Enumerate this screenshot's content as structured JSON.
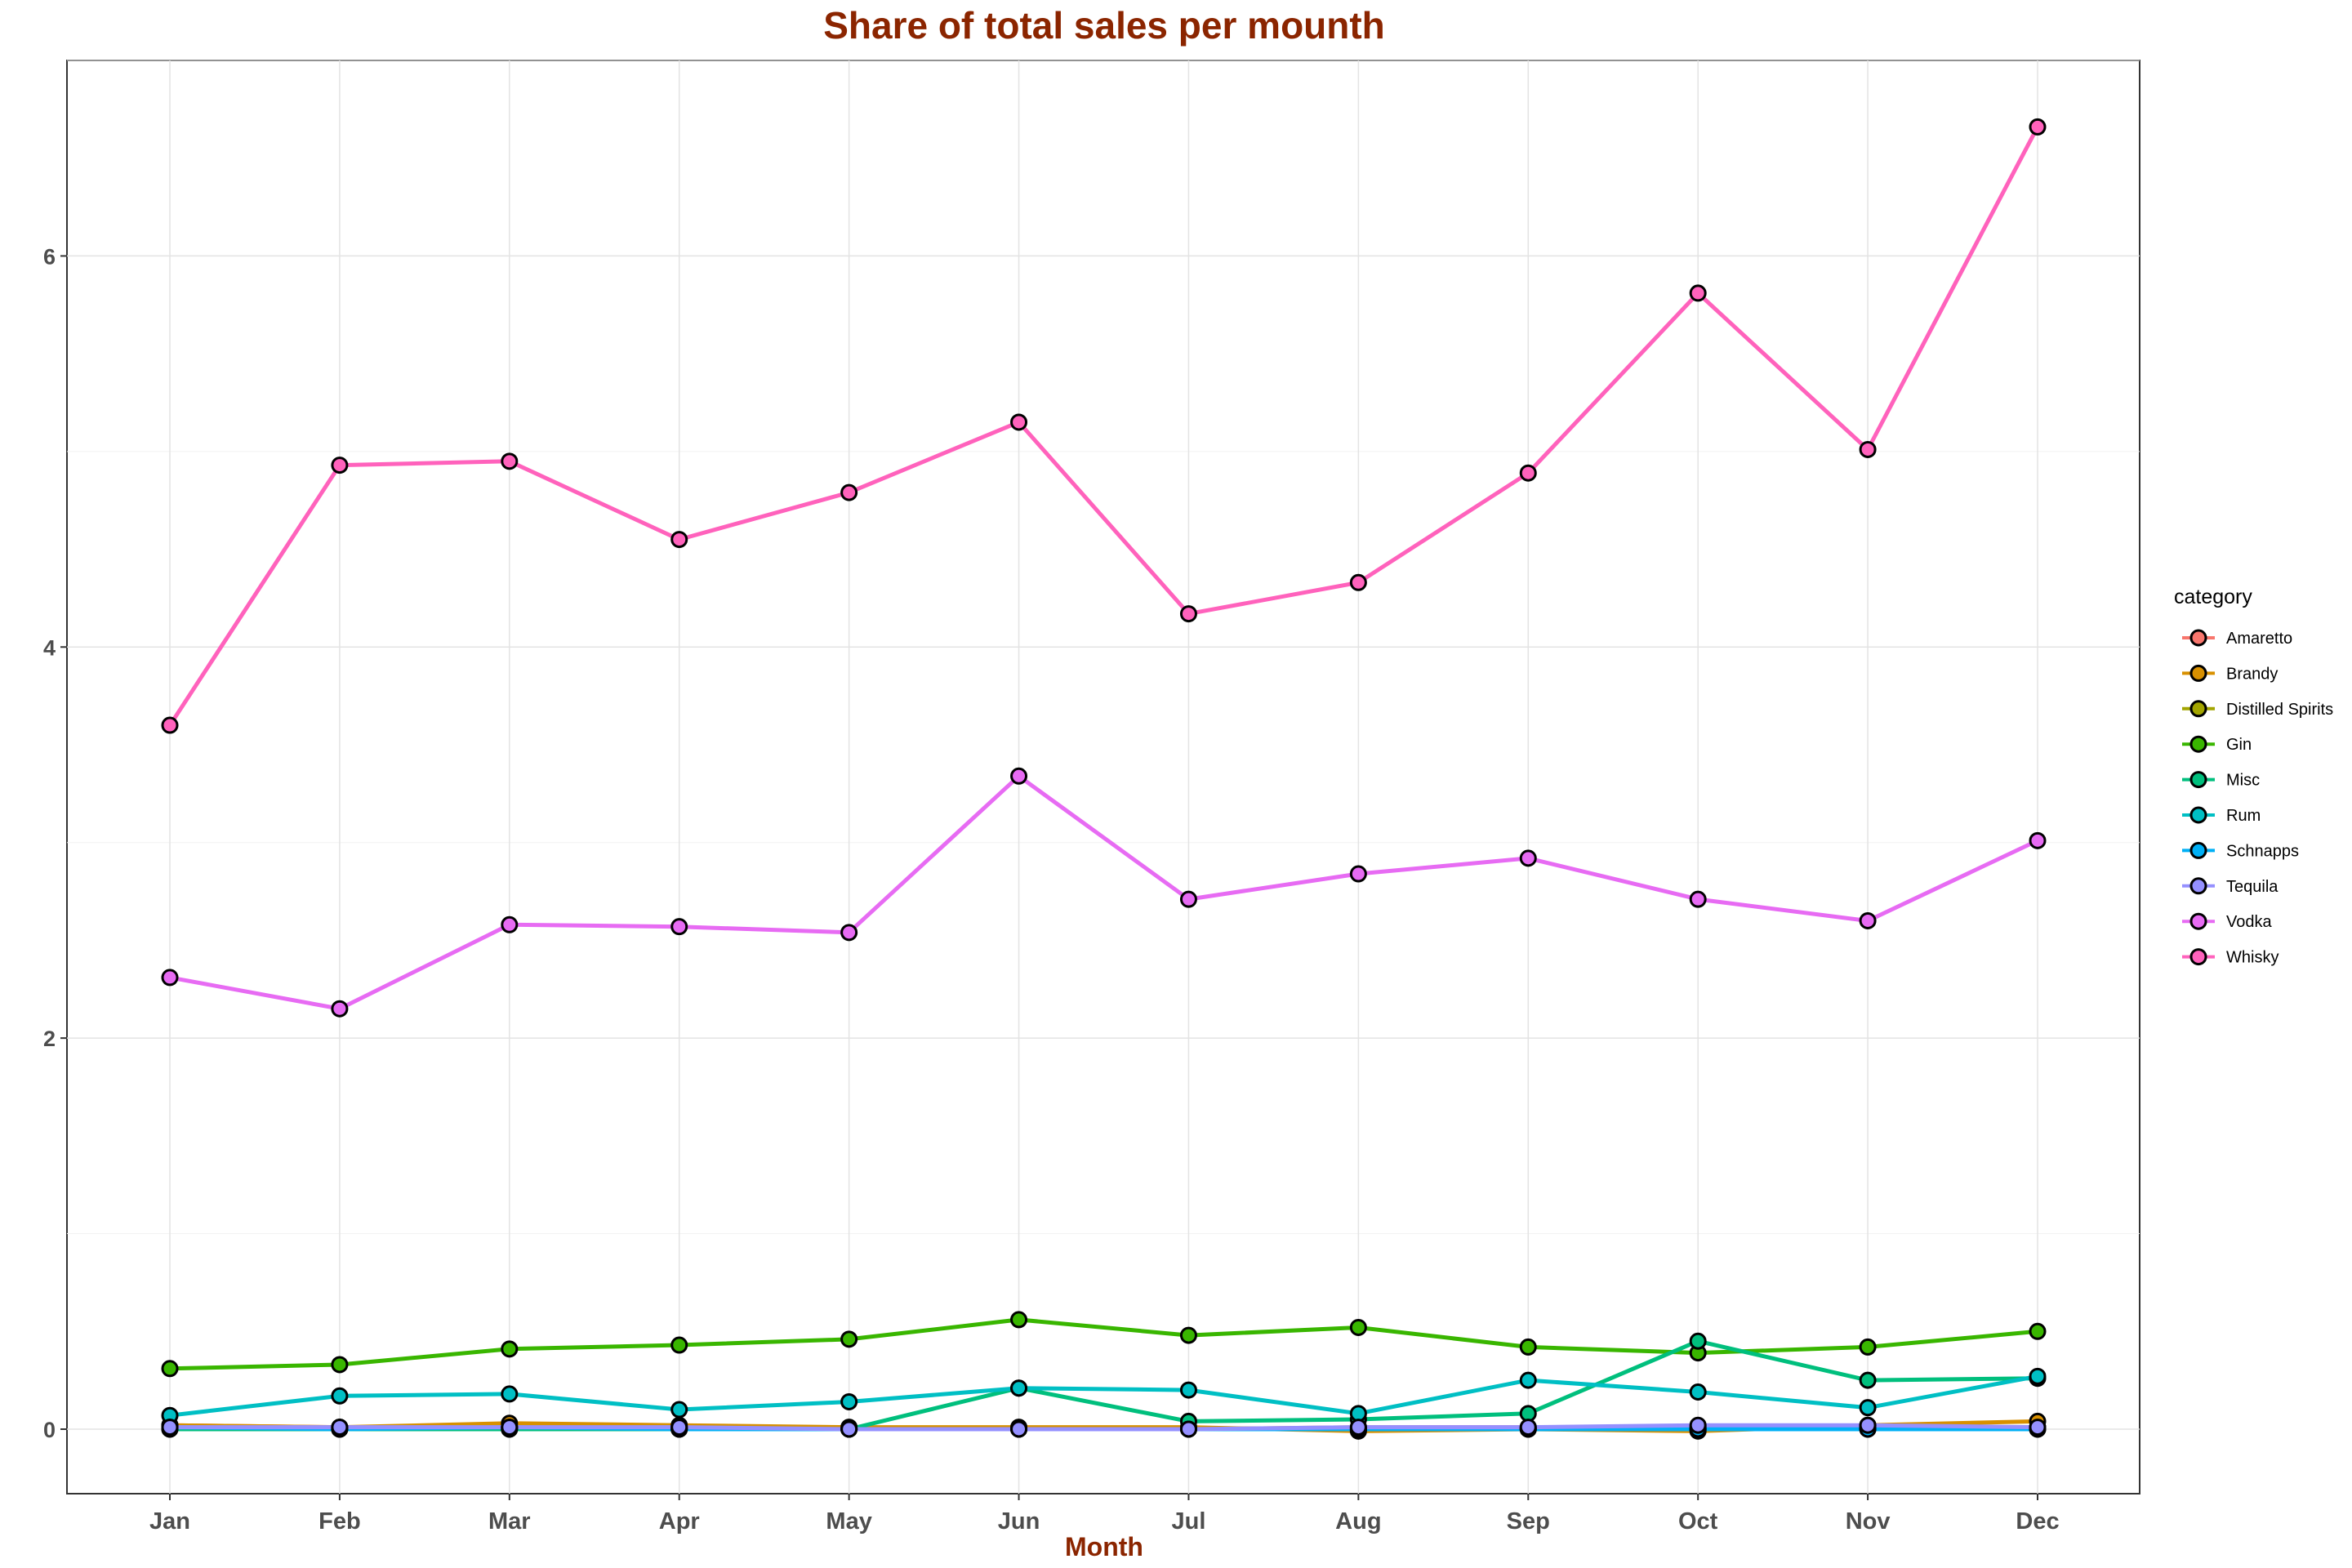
{
  "chart_data": {
    "type": "line",
    "title": "Share of total sales per mounth",
    "xlabel": "Month",
    "ylabel": "",
    "categories": [
      "Jan",
      "Feb",
      "Mar",
      "Apr",
      "May",
      "Jun",
      "Jul",
      "Aug",
      "Sep",
      "Oct",
      "Nov",
      "Dec"
    ],
    "ylim": [
      -0.33,
      7.0
    ],
    "yticks": [
      0,
      2,
      4,
      6
    ],
    "grid": true,
    "legend": {
      "title": "category",
      "position": "right"
    },
    "series": [
      {
        "name": "Amaretto",
        "color": "#F8766D",
        "values": [
          0.02,
          0.01,
          0.01,
          0.01,
          0.0,
          0.0,
          0.0,
          0.01,
          0.01,
          0.01,
          0.01,
          0.01
        ]
      },
      {
        "name": "Brandy",
        "color": "#D89000",
        "values": [
          0.02,
          0.01,
          0.03,
          0.02,
          0.01,
          0.01,
          0.01,
          -0.01,
          0.0,
          -0.01,
          0.02,
          0.04
        ]
      },
      {
        "name": "Distilled Spirits",
        "color": "#A3A500",
        "values": [
          0.0,
          0.0,
          0.0,
          0.0,
          0.0,
          0.0,
          0.0,
          0.0,
          0.0,
          0.0,
          0.0,
          0.0
        ]
      },
      {
        "name": "Gin",
        "color": "#39B600",
        "values": [
          0.31,
          0.33,
          0.41,
          0.43,
          0.46,
          0.56,
          0.48,
          0.52,
          0.42,
          0.39,
          0.42,
          0.5
        ]
      },
      {
        "name": "Misc",
        "color": "#00BF7D",
        "values": [
          0.0,
          0.0,
          0.0,
          0.0,
          0.0,
          0.21,
          0.04,
          0.05,
          0.08,
          0.45,
          0.25,
          0.26
        ]
      },
      {
        "name": "Rum",
        "color": "#00BFC4",
        "values": [
          0.07,
          0.17,
          0.18,
          0.1,
          0.14,
          0.21,
          0.2,
          0.08,
          0.25,
          0.19,
          0.11,
          0.27
        ]
      },
      {
        "name": "Schnapps",
        "color": "#00B0F6",
        "values": [
          0.01,
          0.0,
          0.01,
          0.0,
          0.0,
          0.0,
          0.0,
          0.0,
          0.0,
          0.0,
          0.0,
          0.0
        ]
      },
      {
        "name": "Tequila",
        "color": "#9590FF",
        "values": [
          0.01,
          0.01,
          0.01,
          0.01,
          0.0,
          0.0,
          0.0,
          0.01,
          0.01,
          0.02,
          0.02,
          0.01
        ]
      },
      {
        "name": "Vodka",
        "color": "#E76BF3",
        "values": [
          2.31,
          2.15,
          2.58,
          2.57,
          2.54,
          3.34,
          2.71,
          2.84,
          2.92,
          2.71,
          2.6,
          3.01
        ]
      },
      {
        "name": "Whisky",
        "color": "#FF62BC",
        "values": [
          3.6,
          4.93,
          4.95,
          4.55,
          4.79,
          5.15,
          4.17,
          4.33,
          4.89,
          5.81,
          5.01,
          6.66
        ]
      }
    ]
  }
}
